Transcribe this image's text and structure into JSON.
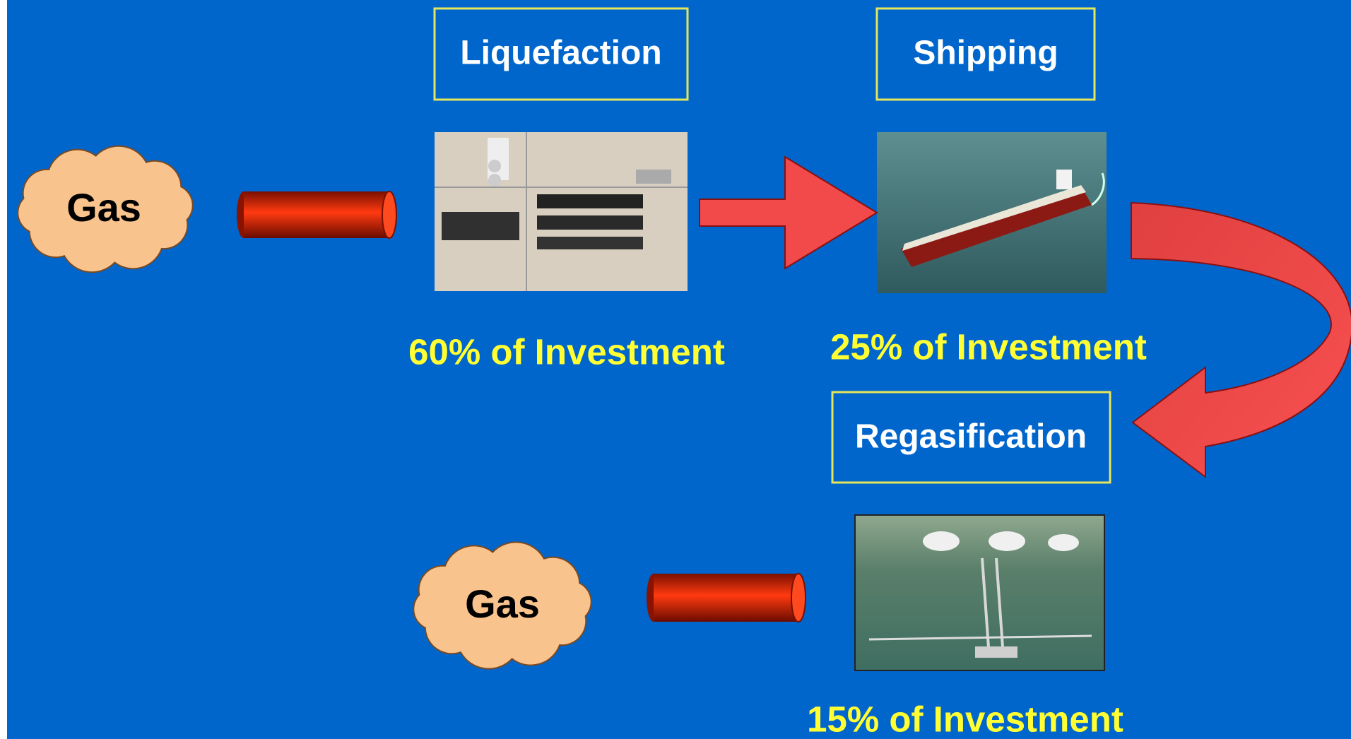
{
  "gas_source": {
    "label": "Gas"
  },
  "stages": [
    {
      "title": "Liquefaction",
      "investment": "60% of Investment"
    },
    {
      "title": "Shipping",
      "investment": "25% of Investment"
    },
    {
      "title": "Regasification",
      "investment": "15% of Investment"
    }
  ],
  "gas_destination": {
    "label": "Gas"
  }
}
